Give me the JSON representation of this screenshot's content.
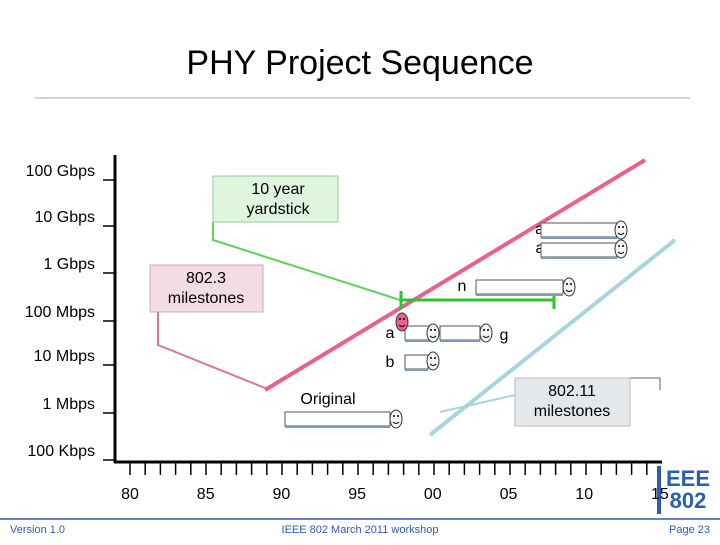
{
  "title": "PHY Project Sequence",
  "y_axis": {
    "labels": [
      "100 Gbps",
      "10 Gbps",
      "1 Gbps",
      "100 Mbps",
      "10 Mbps",
      "1 Mbps",
      "100 Kbps"
    ]
  },
  "x_axis": {
    "labels": [
      "80",
      "85",
      "90",
      "95",
      "00",
      "05",
      "10",
      "15"
    ]
  },
  "callouts": {
    "yardstick": [
      "10 year",
      "yardstick"
    ],
    "ethernet": [
      "802.3",
      "milestones"
    ],
    "wifi": [
      "802.11",
      "milestones"
    ]
  },
  "standards": {
    "ad": "ad",
    "ac": "ac",
    "n": "n",
    "a": "a",
    "g": "g",
    "b": "b",
    "original": "Original"
  },
  "logo": [
    "EEE",
    "802"
  ],
  "footer": {
    "version": "Version 1.0",
    "event": "IEEE 802 March 2011 workshop",
    "page": "Page 23"
  }
}
